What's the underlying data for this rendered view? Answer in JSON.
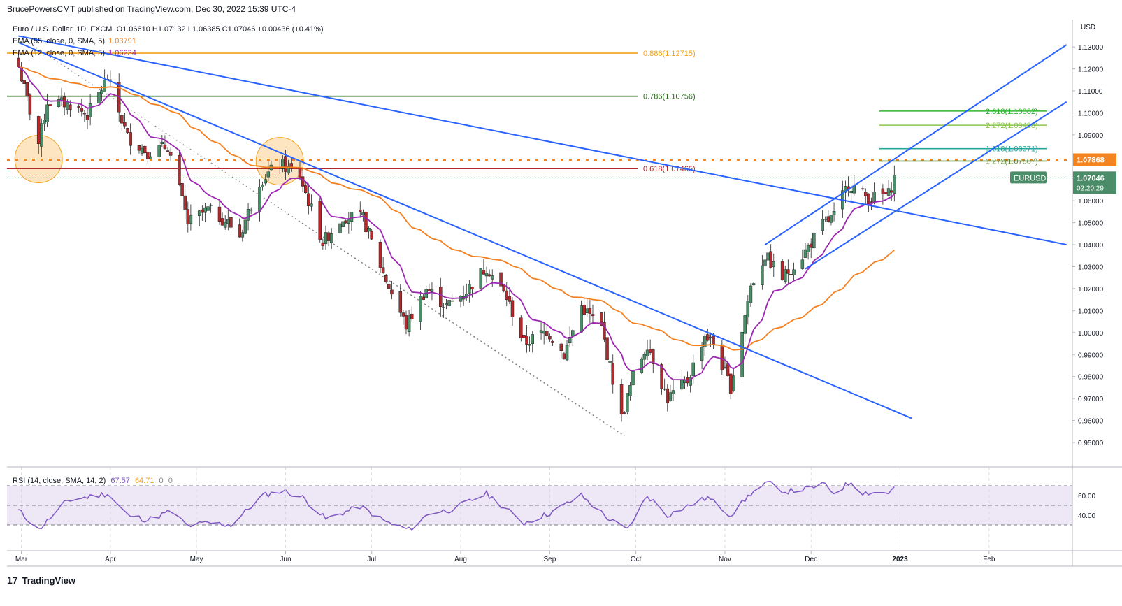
{
  "header": {
    "text": "BrucePowersCMT published on TradingView.com, Dec 30, 2022 15:39 UTC-4"
  },
  "legend": {
    "symbol": "Euro / U.S. Dollar, 1D, FXCM",
    "ohlc": "O1.06610  H1.07132  L1.06385  C1.07046  +0.00436 (+0.41%)",
    "ema55_label": "EMA (55, close, 0, SMA, 5)",
    "ema55_value": "1.03791",
    "ema12_label": "EMA (12, close, 0, SMA, 5)",
    "ema12_value": "1.06234"
  },
  "rsi_legend": {
    "label": "RSI (14, close, SMA, 14, 2)",
    "rsi": "67.57",
    "sma": "64.71",
    "z1": "0",
    "z2": "0"
  },
  "footer": {
    "brand": "TradingView"
  },
  "colors": {
    "up": "#4b8d68",
    "down": "#b4292c",
    "ema55": "#f47f1f",
    "ema12": "#9c27b0",
    "trend": "#2962ff",
    "rsi": "#7e57c2",
    "rsi_band": "#ede7f6",
    "price_box": "#4b8d68",
    "level_box": "#f4841f"
  },
  "chart_data": {
    "type": "candlestick",
    "symbol": "EURUSD",
    "y_axis_unit": "USD",
    "ylim": [
      0.943,
      1.138
    ],
    "y_ticks": [
      "1.13000",
      "1.12000",
      "1.11000",
      "1.10000",
      "1.09000",
      "1.08000",
      "1.07000",
      "1.06000",
      "1.05000",
      "1.04000",
      "1.03000",
      "1.02000",
      "1.01000",
      "1.00000",
      "0.99000",
      "0.98000",
      "0.97000",
      "0.96000",
      "0.95000"
    ],
    "x_ticks": [
      "Mar",
      "Apr",
      "May",
      "Jun",
      "Jul",
      "Aug",
      "Sep",
      "Oct",
      "Nov",
      "Dec",
      "2023",
      "Feb"
    ],
    "anchors": [
      {
        "date": "2022-02-28",
        "close": 1.121
      },
      {
        "date": "2022-03-07",
        "close": 1.086
      },
      {
        "date": "2022-03-10",
        "close": 1.105
      },
      {
        "date": "2022-03-18",
        "close": 1.104
      },
      {
        "date": "2022-03-24",
        "close": 1.099
      },
      {
        "date": "2022-03-31",
        "close": 1.116
      },
      {
        "date": "2022-04-07",
        "close": 1.089
      },
      {
        "date": "2022-04-14",
        "close": 1.082
      },
      {
        "date": "2022-04-21",
        "close": 1.085
      },
      {
        "date": "2022-04-28",
        "close": 1.05
      },
      {
        "date": "2022-05-05",
        "close": 1.056
      },
      {
        "date": "2022-05-12",
        "close": 1.05
      },
      {
        "date": "2022-05-16",
        "close": 1.044
      },
      {
        "date": "2022-05-23",
        "close": 1.069
      },
      {
        "date": "2022-05-30",
        "close": 1.077
      },
      {
        "date": "2022-06-06",
        "close": 1.071
      },
      {
        "date": "2022-06-14",
        "close": 1.041
      },
      {
        "date": "2022-06-21",
        "close": 1.053
      },
      {
        "date": "2022-06-28",
        "close": 1.052
      },
      {
        "date": "2022-07-05",
        "close": 1.027
      },
      {
        "date": "2022-07-13",
        "close": 1.003
      },
      {
        "date": "2022-07-20",
        "close": 1.02
      },
      {
        "date": "2022-07-27",
        "close": 1.012
      },
      {
        "date": "2022-08-03",
        "close": 1.019
      },
      {
        "date": "2022-08-10",
        "close": 1.03
      },
      {
        "date": "2022-08-17",
        "close": 1.016
      },
      {
        "date": "2022-08-23",
        "close": 0.995
      },
      {
        "date": "2022-08-31",
        "close": 1.001
      },
      {
        "date": "2022-09-06",
        "close": 0.99
      },
      {
        "date": "2022-09-12",
        "close": 1.012
      },
      {
        "date": "2022-09-19",
        "close": 1.002
      },
      {
        "date": "2022-09-26",
        "close": 0.961
      },
      {
        "date": "2022-09-30",
        "close": 0.98
      },
      {
        "date": "2022-10-05",
        "close": 0.995
      },
      {
        "date": "2022-10-12",
        "close": 0.97
      },
      {
        "date": "2022-10-19",
        "close": 0.978
      },
      {
        "date": "2022-10-25",
        "close": 0.999
      },
      {
        "date": "2022-10-28",
        "close": 0.995
      },
      {
        "date": "2022-11-03",
        "close": 0.975
      },
      {
        "date": "2022-11-10",
        "close": 1.021
      },
      {
        "date": "2022-11-15",
        "close": 1.035
      },
      {
        "date": "2022-11-21",
        "close": 1.025
      },
      {
        "date": "2022-11-28",
        "close": 1.035
      },
      {
        "date": "2022-12-05",
        "close": 1.049
      },
      {
        "date": "2022-12-09",
        "close": 1.053
      },
      {
        "date": "2022-12-14",
        "close": 1.068
      },
      {
        "date": "2022-12-21",
        "close": 1.061
      },
      {
        "date": "2022-12-28",
        "close": 1.063
      },
      {
        "date": "2022-12-30",
        "close": 1.07046
      }
    ],
    "levels": [
      {
        "label": "0.886(1.12715)",
        "value": 1.12715,
        "color": "#f4a11b",
        "style": "solid"
      },
      {
        "label": "0.786(1.10756)",
        "value": 1.10756,
        "color": "#2e6b1f",
        "style": "solid"
      },
      {
        "label": "0.618(1.07465)",
        "value": 1.07465,
        "color": "#b4292c",
        "style": "solid"
      },
      {
        "label": "",
        "value": 1.07868,
        "color": "#f4841f",
        "style": "dotted"
      }
    ],
    "extensions": [
      {
        "label": "2.618(1.10082)",
        "value": 1.10082,
        "color": "#2fb32f"
      },
      {
        "label": "2.272(1.09438)",
        "value": 1.09438,
        "color": "#8bc34a"
      },
      {
        "label": "1.618(1.08371)",
        "value": 1.08371,
        "color": "#26a69a"
      },
      {
        "label": "1.272(1.07807)",
        "value": 1.07807,
        "color": "#5e8a2c"
      }
    ],
    "price_labels": [
      {
        "label": "1.07868",
        "value": 1.07868,
        "color": "#f4841f"
      },
      {
        "label": "1.07046",
        "value": 1.07046,
        "color": "#4b8d68",
        "sub": "02:20:29",
        "tag": "EURUSD"
      }
    ],
    "trendlines": [
      {
        "from": {
          "date": "2022-02-28",
          "value": 1.135
        },
        "to": {
          "date": "2023-02-28",
          "value": 1.04
        }
      },
      {
        "from": {
          "date": "2022-02-28",
          "value": 1.132
        },
        "to": {
          "date": "2023-01-05",
          "value": 0.961
        }
      },
      {
        "from": {
          "date": "2022-11-15",
          "value": 1.04
        },
        "to": {
          "date": "2023-02-28",
          "value": 1.131
        }
      },
      {
        "from": {
          "date": "2022-11-29",
          "value": 1.029
        },
        "to": {
          "date": "2023-02-28",
          "value": 1.105
        }
      }
    ],
    "dotted_line": {
      "from": {
        "date": "2022-02-28",
        "value": 1.135
      },
      "to": {
        "date": "2022-09-27",
        "value": 0.953
      }
    },
    "highlight_circles": [
      {
        "date": "2022-03-07",
        "value": 1.079
      },
      {
        "date": "2022-05-30",
        "value": 1.078
      }
    ],
    "rsi": {
      "ylim": [
        20,
        80
      ],
      "levels": [
        70,
        50,
        30
      ],
      "y_ticks": [
        "60.00",
        "40.00"
      ],
      "anchors": [
        {
          "date": "2022-02-28",
          "value": 45
        },
        {
          "date": "2022-03-07",
          "value": 25
        },
        {
          "date": "2022-03-17",
          "value": 55
        },
        {
          "date": "2022-03-31",
          "value": 62
        },
        {
          "date": "2022-04-07",
          "value": 40
        },
        {
          "date": "2022-04-14",
          "value": 35
        },
        {
          "date": "2022-04-22",
          "value": 44
        },
        {
          "date": "2022-04-28",
          "value": 29
        },
        {
          "date": "2022-05-05",
          "value": 32
        },
        {
          "date": "2022-05-13",
          "value": 30
        },
        {
          "date": "2022-05-24",
          "value": 60
        },
        {
          "date": "2022-05-31",
          "value": 65
        },
        {
          "date": "2022-06-07",
          "value": 58
        },
        {
          "date": "2022-06-15",
          "value": 36
        },
        {
          "date": "2022-06-27",
          "value": 49
        },
        {
          "date": "2022-07-06",
          "value": 33
        },
        {
          "date": "2022-07-14",
          "value": 25
        },
        {
          "date": "2022-07-21",
          "value": 42
        },
        {
          "date": "2022-07-28",
          "value": 45
        },
        {
          "date": "2022-08-10",
          "value": 62
        },
        {
          "date": "2022-08-23",
          "value": 32
        },
        {
          "date": "2022-09-01",
          "value": 42
        },
        {
          "date": "2022-09-12",
          "value": 60
        },
        {
          "date": "2022-09-22",
          "value": 35
        },
        {
          "date": "2022-09-28",
          "value": 25
        },
        {
          "date": "2022-10-05",
          "value": 60
        },
        {
          "date": "2022-10-12",
          "value": 40
        },
        {
          "date": "2022-10-26",
          "value": 58
        },
        {
          "date": "2022-11-03",
          "value": 40
        },
        {
          "date": "2022-11-10",
          "value": 62
        },
        {
          "date": "2022-11-16",
          "value": 73
        },
        {
          "date": "2022-11-22",
          "value": 64
        },
        {
          "date": "2022-11-30",
          "value": 67
        },
        {
          "date": "2022-12-05",
          "value": 72
        },
        {
          "date": "2022-12-09",
          "value": 63
        },
        {
          "date": "2022-12-15",
          "value": 74
        },
        {
          "date": "2022-12-19",
          "value": 63
        },
        {
          "date": "2022-12-28",
          "value": 63
        },
        {
          "date": "2022-12-30",
          "value": 67.57
        }
      ]
    }
  }
}
